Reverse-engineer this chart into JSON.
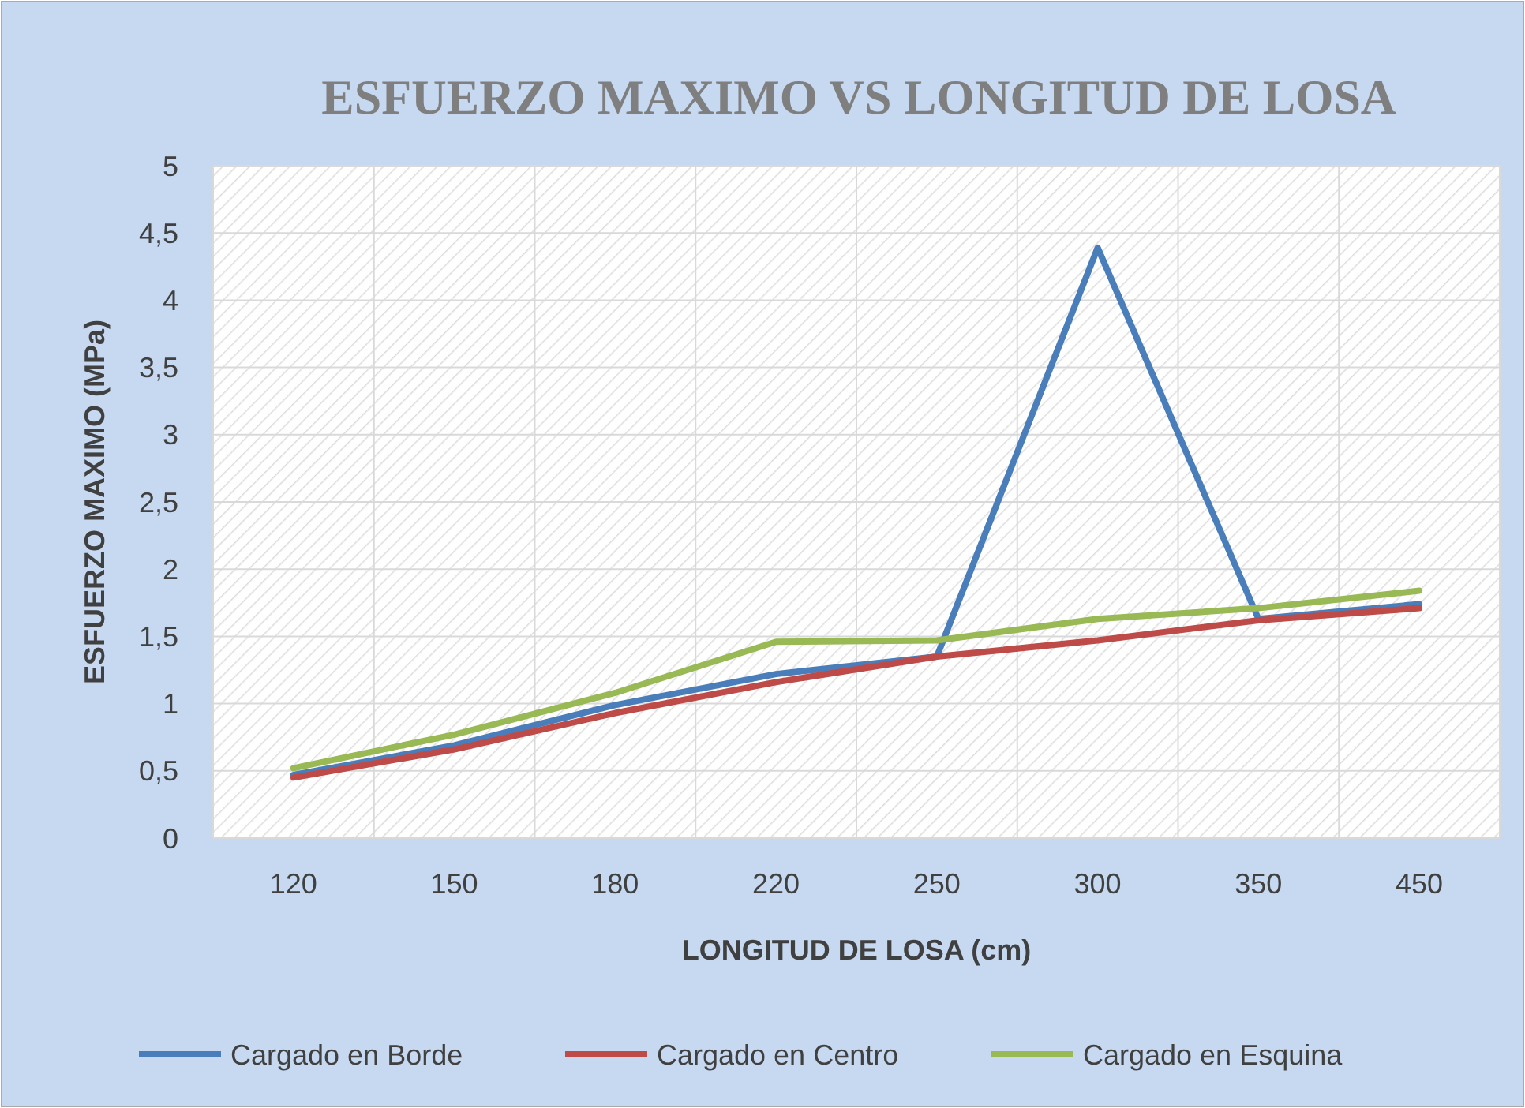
{
  "chart_data": {
    "type": "line",
    "title": "ESFUERZO MAXIMO VS LONGITUD DE LOSA",
    "xlabel": "LONGITUD DE LOSA (cm)",
    "ylabel": "ESFUERZO MAXIMO (MPa)",
    "categories": [
      "120",
      "150",
      "180",
      "220",
      "250",
      "300",
      "350",
      "450"
    ],
    "series": [
      {
        "name": "Cargado en Borde",
        "color": "#4a7ebb",
        "values": [
          0.47,
          0.69,
          0.99,
          1.22,
          1.35,
          4.39,
          1.63,
          1.74
        ]
      },
      {
        "name": "Cargado en Centro",
        "color": "#be4b48",
        "values": [
          0.45,
          0.66,
          0.93,
          1.16,
          1.35,
          1.47,
          1.62,
          1.71
        ]
      },
      {
        "name": "Cargado en Esquina",
        "color": "#98b954",
        "values": [
          0.52,
          0.77,
          1.08,
          1.46,
          1.47,
          1.63,
          1.71,
          1.84
        ]
      }
    ],
    "ylim": [
      0,
      5
    ],
    "yticks": [
      0,
      {
        "value": 0.5,
        "label": "0,5"
      },
      1,
      {
        "value": 1.5,
        "label": "1,5"
      },
      2,
      {
        "value": 2.5,
        "label": "2,5"
      },
      3,
      {
        "value": 3.5,
        "label": "3,5"
      },
      4,
      {
        "value": 4.5,
        "label": "4,5"
      },
      5
    ],
    "grid": true,
    "legend": "bottom",
    "marker": "none",
    "line_style": "solid"
  }
}
